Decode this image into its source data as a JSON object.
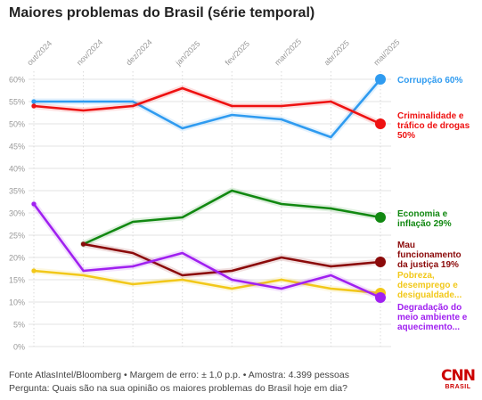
{
  "title": "Maiores problemas do Brasil (série temporal)",
  "footer": {
    "source": "Fonte AtlasIntel/Bloomberg • Margem de erro: ± 1,0 p.p. • Amostra: 4.399 pessoas",
    "question": "Pergunta: Quais são na sua opinião os maiores problemas do Brasil hoje em dia?"
  },
  "logo": {
    "brand": "CNN",
    "sub": "BRASIL"
  },
  "chart_data": {
    "type": "line",
    "title": "Maiores problemas do Brasil (série temporal)",
    "categories": [
      "out/2024",
      "nov/2024",
      "dez/2024",
      "jan/2025",
      "fev/2025",
      "mar/2025",
      "abr/2025",
      "mai/2025"
    ],
    "y_ticks": [
      "0%",
      "5%",
      "10%",
      "15%",
      "20%",
      "25%",
      "30%",
      "35%",
      "40%",
      "45%",
      "50%",
      "55%",
      "60%"
    ],
    "ylim": [
      0,
      60
    ],
    "grid": true,
    "legend": "end-labels-right",
    "series": [
      {
        "name": "Corrupção",
        "end_label": [
          "Corrupção 60%"
        ],
        "color": "#2f9bf0",
        "values": [
          55,
          55,
          55,
          49,
          52,
          51,
          47,
          60
        ]
      },
      {
        "name": "Criminalidade e tráfico de drogas",
        "end_label": [
          "Criminalidade e",
          "tráfico de drogas",
          "50%"
        ],
        "color": "#ee1111",
        "values": [
          54,
          53,
          54,
          58,
          54,
          54,
          55,
          50
        ]
      },
      {
        "name": "Economia e inflação",
        "end_label": [
          "Economia e",
          "inflação 29%"
        ],
        "color": "#118811",
        "values": [
          null,
          23,
          28,
          29,
          35,
          32,
          31,
          29
        ]
      },
      {
        "name": "Mau funcionamento da justiça",
        "end_label": [
          "Mau",
          "funcionamento",
          "da justiça 19%"
        ],
        "color": "#8b0a0a",
        "values": [
          null,
          23,
          21,
          16,
          17,
          20,
          18,
          19
        ]
      },
      {
        "name": "Pobreza, desemprego e desigualdade",
        "end_label": [
          "Pobreza,",
          "desemprego e",
          "desigualdade..."
        ],
        "color": "#f2c81a",
        "values": [
          17,
          16,
          14,
          15,
          13,
          15,
          13,
          12
        ]
      },
      {
        "name": "Degradação do meio ambiente e aquecimento",
        "end_label": [
          "Degradação do",
          "meio ambiente e",
          "aquecimento..."
        ],
        "color": "#a020f0",
        "values": [
          32,
          17,
          18,
          21,
          15,
          13,
          16,
          11
        ]
      }
    ]
  }
}
